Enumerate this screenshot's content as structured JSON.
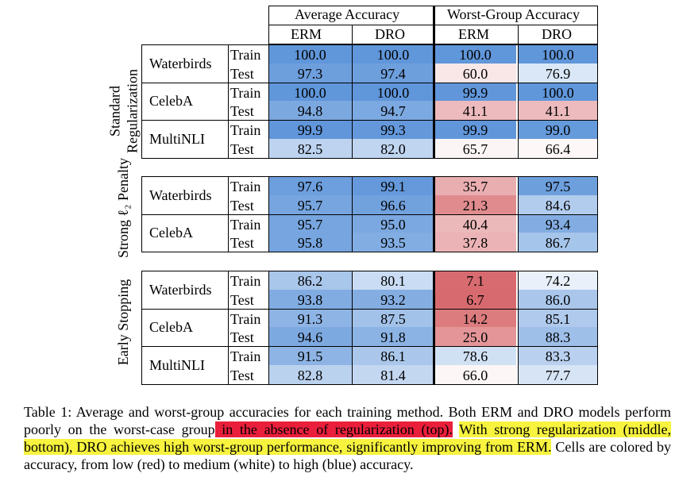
{
  "header": {
    "average_accuracy": "Average Accuracy",
    "worst_group_accuracy": "Worst-Group Accuracy",
    "erm": "ERM",
    "dro": "DRO"
  },
  "sections": [
    {
      "label_lines": [
        "Standard",
        "Regularization"
      ],
      "datasets": [
        {
          "name": "Waterbirds",
          "rows": [
            {
              "split": "Train",
              "values": [
                "100.0",
                "100.0",
                "100.0",
                "100.0"
              ]
            },
            {
              "split": "Test",
              "values": [
                "97.3",
                "97.4",
                "60.0",
                "76.9"
              ]
            }
          ]
        },
        {
          "name": "CelebA",
          "rows": [
            {
              "split": "Train",
              "values": [
                "100.0",
                "100.0",
                "99.9",
                "100.0"
              ]
            },
            {
              "split": "Test",
              "values": [
                "94.8",
                "94.7",
                "41.1",
                "41.1"
              ]
            }
          ]
        },
        {
          "name": "MultiNLI",
          "rows": [
            {
              "split": "Train",
              "values": [
                "99.9",
                "99.3",
                "99.9",
                "99.0"
              ]
            },
            {
              "split": "Test",
              "values": [
                "82.5",
                "82.0",
                "65.7",
                "66.4"
              ]
            }
          ]
        }
      ]
    },
    {
      "label_lines": [
        "Strong ℓ₂ Penalty"
      ],
      "datasets": [
        {
          "name": "Waterbirds",
          "rows": [
            {
              "split": "Train",
              "values": [
                "97.6",
                "99.1",
                "35.7",
                "97.5"
              ]
            },
            {
              "split": "Test",
              "values": [
                "95.7",
                "96.6",
                "21.3",
                "84.6"
              ]
            }
          ]
        },
        {
          "name": "CelebA",
          "rows": [
            {
              "split": "Train",
              "values": [
                "95.7",
                "95.0",
                "40.4",
                "93.4"
              ]
            },
            {
              "split": "Test",
              "values": [
                "95.8",
                "93.5",
                "37.8",
                "86.7"
              ]
            }
          ]
        }
      ]
    },
    {
      "label_lines": [
        "Early Stopping"
      ],
      "datasets": [
        {
          "name": "Waterbirds",
          "rows": [
            {
              "split": "Train",
              "values": [
                "86.2",
                "80.1",
                "7.1",
                "74.2"
              ]
            },
            {
              "split": "Test",
              "values": [
                "93.8",
                "93.2",
                "6.7",
                "86.0"
              ]
            }
          ]
        },
        {
          "name": "CelebA",
          "rows": [
            {
              "split": "Train",
              "values": [
                "91.3",
                "87.5",
                "14.2",
                "85.1"
              ]
            },
            {
              "split": "Test",
              "values": [
                "94.6",
                "91.8",
                "25.0",
                "88.3"
              ]
            }
          ]
        },
        {
          "name": "MultiNLI",
          "rows": [
            {
              "split": "Train",
              "values": [
                "91.5",
                "86.1",
                "78.6",
                "83.3"
              ]
            },
            {
              "split": "Test",
              "values": [
                "82.8",
                "81.4",
                "66.0",
                "77.7"
              ]
            }
          ]
        }
      ]
    }
  ],
  "caption": {
    "part1": "Table 1: Average and worst-group accuracies for each training method. Both ERM and DRO models perform poorly on the worst-case group",
    "highlight_red": " in the absence of regularization (top).",
    "gap": " ",
    "highlight_yellow": "With strong regularization (middle, bottom), DRO achieves high worst-group performance, significantly improving from ERM.",
    "part2": " Cells are colored by accuracy, from low (red) to medium (white) to high (blue) accuracy."
  }
}
